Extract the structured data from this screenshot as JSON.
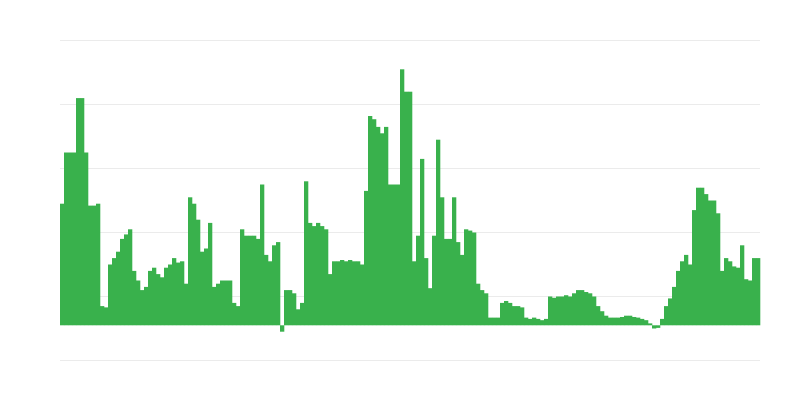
{
  "chart_data": {
    "type": "bar",
    "title": "",
    "xlabel": "",
    "ylabel": "",
    "grid": true,
    "ylim": [
      -0.55,
      4.45
    ],
    "gridlines": [
      -0.55,
      0.45,
      1.45,
      2.45,
      3.45,
      4.45
    ],
    "bar_color": "#39b14c",
    "grid_color": "#ebebeb",
    "values": [
      1.9,
      2.7,
      2.7,
      2.7,
      3.55,
      3.55,
      2.7,
      1.87,
      1.87,
      1.9,
      0.3,
      0.28,
      0.95,
      1.05,
      1.15,
      1.35,
      1.42,
      1.5,
      0.85,
      0.7,
      0.55,
      0.6,
      0.85,
      0.9,
      0.8,
      0.75,
      0.9,
      0.95,
      1.05,
      0.98,
      1.0,
      0.65,
      2.0,
      1.9,
      1.65,
      1.15,
      1.2,
      1.6,
      0.6,
      0.65,
      0.7,
      0.7,
      0.7,
      0.35,
      0.3,
      1.5,
      1.4,
      1.4,
      1.4,
      1.35,
      2.2,
      1.1,
      1.0,
      1.25,
      1.3,
      -0.1,
      0.55,
      0.55,
      0.5,
      0.25,
      0.35,
      2.25,
      1.6,
      1.55,
      1.6,
      1.55,
      1.5,
      0.8,
      1.0,
      1.0,
      1.02,
      1.0,
      1.02,
      1.0,
      1.0,
      0.95,
      2.1,
      3.27,
      3.22,
      3.1,
      3.0,
      3.1,
      2.2,
      2.2,
      2.2,
      4.0,
      3.65,
      3.65,
      1.0,
      1.4,
      2.6,
      1.05,
      0.58,
      1.4,
      2.9,
      2.0,
      1.35,
      1.35,
      2.0,
      1.3,
      1.1,
      1.5,
      1.48,
      1.45,
      0.65,
      0.55,
      0.5,
      0.12,
      0.12,
      0.12,
      0.35,
      0.38,
      0.35,
      0.3,
      0.3,
      0.28,
      0.12,
      0.1,
      0.12,
      0.1,
      0.08,
      0.1,
      0.45,
      0.43,
      0.45,
      0.45,
      0.47,
      0.45,
      0.5,
      0.55,
      0.55,
      0.52,
      0.5,
      0.45,
      0.3,
      0.22,
      0.15,
      0.12,
      0.12,
      0.12,
      0.13,
      0.15,
      0.15,
      0.13,
      0.12,
      0.1,
      0.08,
      0.03,
      -0.05,
      -0.04,
      0.1,
      0.3,
      0.42,
      0.6,
      0.85,
      1.0,
      1.1,
      0.95,
      1.8,
      2.15,
      2.15,
      2.05,
      1.95,
      1.95,
      1.75,
      0.85,
      1.05,
      1.0,
      0.92,
      0.9,
      1.25,
      0.72,
      0.7,
      1.05,
      1.05
    ]
  }
}
